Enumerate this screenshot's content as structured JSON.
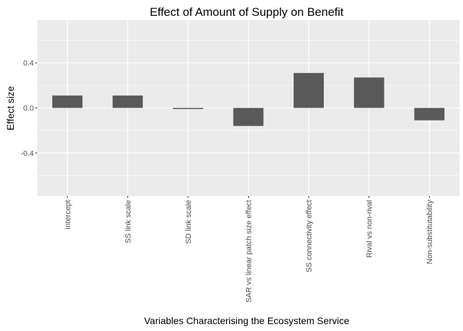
{
  "chart_data": {
    "type": "bar",
    "title": "Effect of Amount of Supply on Benefit",
    "xlabel": "Variables Characterising the Ecosystem Service",
    "ylabel": "Effect size",
    "categories": [
      "Intercept",
      "SS link scale",
      "SD link scale",
      "SAR vs linear patch size effect",
      "SS connectivity effect",
      "Rival vs non-rival",
      "Non-substitutability"
    ],
    "values": [
      0.11,
      0.11,
      -0.01,
      -0.16,
      0.31,
      0.27,
      -0.11
    ],
    "ylim": [
      -0.78,
      0.78
    ],
    "yticks": [
      -0.4,
      0.0,
      0.4
    ],
    "ytick_labels": [
      "-0.4",
      "0.0",
      "0.4"
    ],
    "grid": true,
    "colors": {
      "panel": "#ebebeb",
      "grid_major": "#ffffff",
      "bar": "#595959",
      "tick_text": "#4d4d4d"
    }
  }
}
